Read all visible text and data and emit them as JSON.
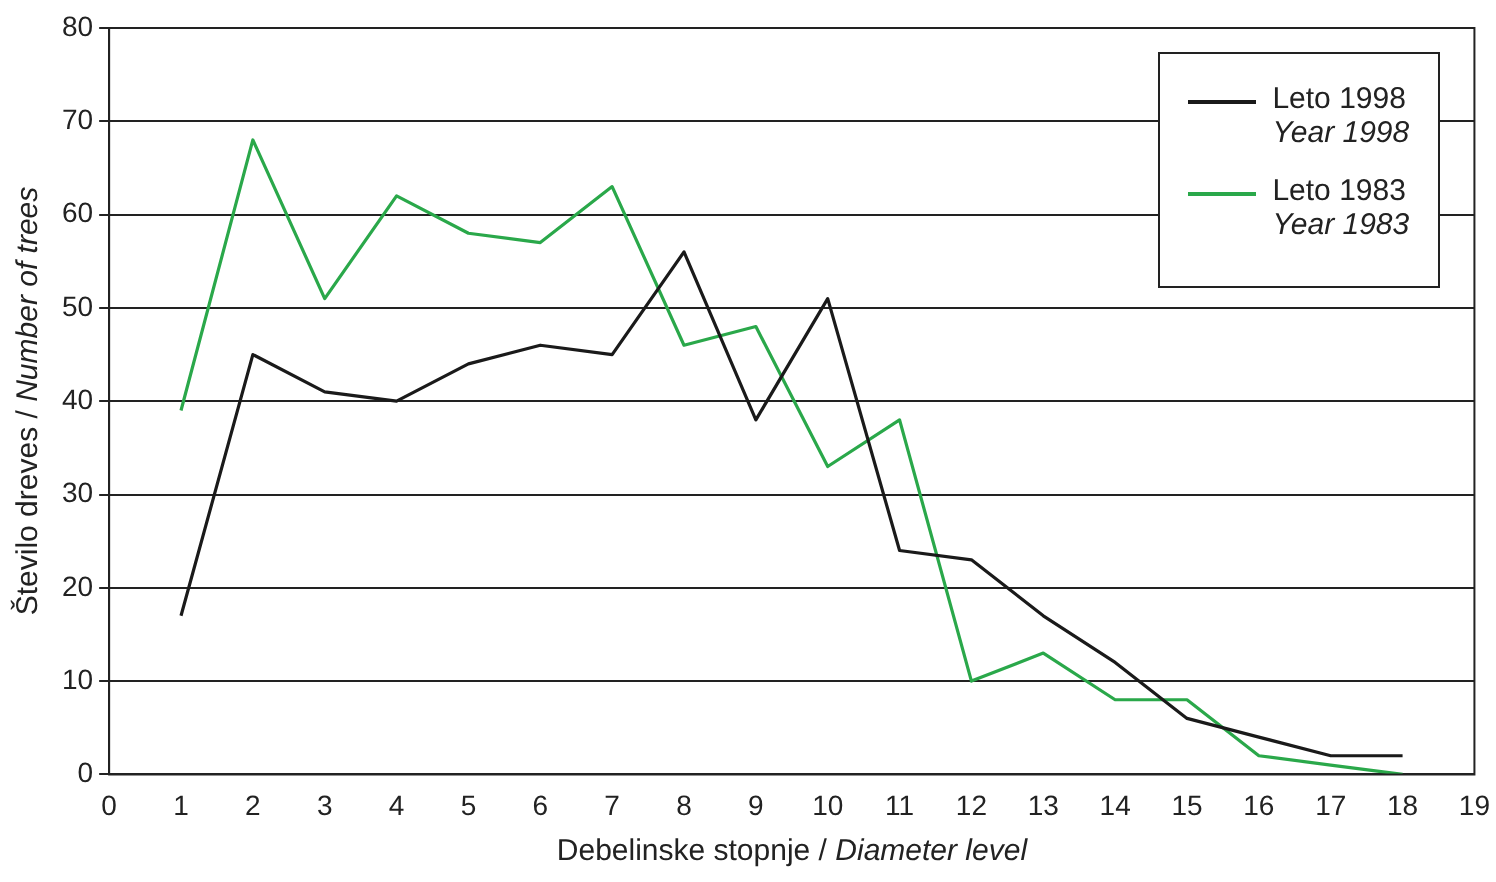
{
  "chart_data": {
    "type": "line",
    "xlabel": "Debelinske stopnje / Diameter level",
    "ylabel": "Število dreves / Number of trees",
    "x": [
      1,
      2,
      3,
      4,
      5,
      6,
      7,
      8,
      9,
      10,
      11,
      12,
      13,
      14,
      15,
      16,
      17,
      18
    ],
    "series": [
      {
        "name": "Leto 1998\nYear 1998",
        "color": "#1a1a1a",
        "values": [
          17,
          45,
          41,
          40,
          44,
          46,
          45,
          56,
          38,
          51,
          24,
          23,
          17,
          12,
          6,
          4,
          2,
          2
        ]
      },
      {
        "name": "Leto 1983\nYear 1983",
        "color": "#2aa84a",
        "values": [
          39,
          68,
          51,
          62,
          58,
          57,
          63,
          46,
          48,
          33,
          38,
          10,
          13,
          8,
          8,
          2,
          1,
          0
        ]
      }
    ],
    "xlim": [
      0,
      19
    ],
    "xticks": [
      0,
      1,
      2,
      3,
      4,
      5,
      6,
      7,
      8,
      9,
      10,
      11,
      12,
      13,
      14,
      15,
      16,
      17,
      18,
      19
    ],
    "ylim": [
      0,
      80
    ],
    "yticks": [
      0,
      10,
      20,
      30,
      40,
      50,
      60,
      70,
      80
    ],
    "grid": "y",
    "legend": "top right",
    "marker": "none",
    "line_style": "solid"
  }
}
